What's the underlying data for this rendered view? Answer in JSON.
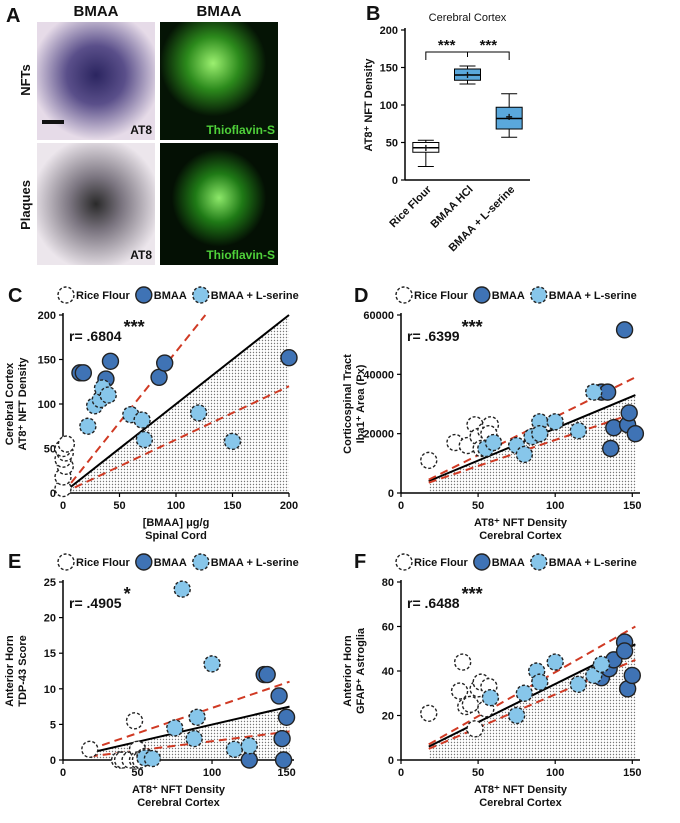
{
  "panel_a": {
    "letter": "A",
    "column_titles": [
      "BMAA",
      "BMAA"
    ],
    "row_labels": [
      "NFTs",
      "Plaques"
    ],
    "image_labels": [
      "AT8",
      "Thioflavin-S",
      "AT8",
      "Thioflavin-S"
    ]
  },
  "chart_data": [
    {
      "type": "box",
      "panel": "B",
      "title": "Cerebral Cortex",
      "y_label": "AT8⁺ NFT Density",
      "categories": [
        "Rice Flour",
        "BMAA HCl",
        "BMAA + L-serine"
      ],
      "boxes": [
        {
          "min": 18,
          "q1": 37,
          "median": 43,
          "q3": 50,
          "max": 53,
          "mean": 43,
          "color": "#ffffff"
        },
        {
          "min": 128,
          "q1": 133,
          "median": 140,
          "q3": 148,
          "max": 152,
          "mean": 140,
          "color": "#5aa8dc"
        },
        {
          "min": 57,
          "q1": 68,
          "median": 82,
          "q3": 97,
          "max": 115,
          "mean": 84,
          "color": "#5aa8dc"
        }
      ],
      "significance": [
        "***",
        "***"
      ],
      "ylim": [
        0,
        200
      ],
      "yticks": [
        0,
        50,
        100,
        150,
        200
      ]
    },
    {
      "type": "scatter",
      "panel": "C",
      "annotation": "r= .6804",
      "stars": "***",
      "y_label": [
        "Cerebral Cortex",
        "AT8⁺ NFT Density"
      ],
      "x_label": [
        "[BMAA] μg/g",
        "Spinal Cord"
      ],
      "xlim": [
        0,
        200
      ],
      "ylim": [
        0,
        200
      ],
      "xticks": [
        0,
        50,
        100,
        150,
        200
      ],
      "yticks": [
        0,
        50,
        100,
        150,
        200
      ],
      "series": [
        {
          "name": "Rice Flour",
          "color": "#ffffff",
          "dashed": true,
          "x": [
            0,
            0,
            2,
            0,
            2,
            0,
            3
          ],
          "values": [
            5,
            18,
            30,
            38,
            45,
            50,
            55
          ]
        },
        {
          "name": "BMAA",
          "color": "#3f73b5",
          "dashed": false,
          "x": [
            15,
            18,
            38,
            42,
            85,
            90,
            200
          ],
          "values": [
            135,
            135,
            128,
            148,
            130,
            146,
            152
          ]
        },
        {
          "name": "BMAA + L-serine",
          "color": "#87c6ea",
          "dashed": true,
          "x": [
            22,
            28,
            33,
            35,
            40,
            60,
            70,
            72,
            120,
            150
          ],
          "values": [
            75,
            98,
            105,
            118,
            110,
            88,
            82,
            60,
            90,
            58
          ]
        }
      ],
      "fit_lines": [
        {
          "color": "#000000",
          "dash": false,
          "x": [
            0,
            200
          ],
          "y": [
            0,
            200
          ]
        },
        {
          "color": "#d03a24",
          "dash": true,
          "x": [
            0,
            126
          ],
          "y": [
            0,
            200
          ]
        },
        {
          "color": "#d03a24",
          "dash": true,
          "x": [
            0,
            200
          ],
          "y": [
            0,
            120
          ]
        }
      ]
    },
    {
      "type": "scatter",
      "panel": "D",
      "annotation": "r= .6399",
      "stars": "***",
      "y_label": [
        "Corticospinal Tract",
        "Iba1⁺ Area (Px)"
      ],
      "x_label": [
        "AT8⁺ NFT Density",
        "Cerebral Cortex"
      ],
      "xlim": [
        0,
        155
      ],
      "ylim": [
        0,
        60000
      ],
      "xticks": [
        0,
        50,
        100,
        150
      ],
      "yticks": [
        0,
        20000,
        40000,
        60000
      ],
      "series": [
        {
          "name": "Rice Flour",
          "color": "#ffffff",
          "dashed": true,
          "x": [
            18,
            35,
            43,
            48,
            50,
            52,
            55,
            58,
            57
          ],
          "values": [
            11000,
            17000,
            16000,
            23000,
            19000,
            15000,
            21000,
            23000,
            20000
          ]
        },
        {
          "name": "BMAA",
          "color": "#3f73b5",
          "dashed": false,
          "x": [
            130,
            134,
            136,
            138,
            145,
            147,
            148,
            152
          ],
          "values": [
            34000,
            34000,
            15000,
            22000,
            55000,
            23000,
            27000,
            20000
          ]
        },
        {
          "name": "BMAA + L-serine",
          "color": "#87c6ea",
          "dashed": true,
          "x": [
            55,
            60,
            75,
            80,
            85,
            90,
            90,
            100,
            115,
            125
          ],
          "values": [
            15000,
            17000,
            16000,
            13000,
            19000,
            24000,
            20000,
            24000,
            21000,
            34000
          ]
        }
      ],
      "fit_lines": [
        {
          "color": "#000000",
          "dash": false,
          "x": [
            18,
            152
          ],
          "y": [
            4000,
            33000
          ]
        },
        {
          "color": "#d03a24",
          "dash": true,
          "x": [
            18,
            152
          ],
          "y": [
            4500,
            39000
          ]
        },
        {
          "color": "#d03a24",
          "dash": true,
          "x": [
            18,
            152
          ],
          "y": [
            3500,
            27000
          ]
        }
      ]
    },
    {
      "type": "scatter",
      "panel": "E",
      "annotation": "r= .4905",
      "stars": "*",
      "y_label": [
        "Anterior Horn",
        "TDP-43 Score"
      ],
      "x_label": [
        "AT8⁺ NFT Density",
        "Cerebral Cortex"
      ],
      "xlim": [
        0,
        155
      ],
      "ylim": [
        0,
        25
      ],
      "xticks": [
        0,
        50,
        100,
        150
      ],
      "yticks": [
        0,
        5,
        10,
        15,
        20,
        25
      ],
      "series": [
        {
          "name": "Rice Flour",
          "color": "#ffffff",
          "dashed": true,
          "x": [
            18,
            38,
            40,
            45,
            48,
            50,
            50,
            52,
            55
          ],
          "values": [
            1.5,
            0,
            0,
            0,
            5.5,
            1.5,
            0,
            0,
            0.5
          ]
        },
        {
          "name": "BMAA",
          "color": "#3f73b5",
          "dashed": false,
          "x": [
            125,
            135,
            137,
            145,
            147,
            148,
            150
          ],
          "values": [
            0,
            12,
            12,
            9,
            3,
            0,
            6
          ]
        },
        {
          "name": "BMAA + L-serine",
          "color": "#87c6ea",
          "dashed": true,
          "x": [
            55,
            60,
            75,
            80,
            88,
            90,
            100,
            115,
            125
          ],
          "values": [
            0.3,
            0.2,
            4.5,
            24,
            3,
            6,
            13.5,
            1.5,
            2
          ]
        }
      ],
      "fit_lines": [
        {
          "color": "#000000",
          "dash": false,
          "x": [
            18,
            152
          ],
          "y": [
            1,
            7.5
          ]
        },
        {
          "color": "#d03a24",
          "dash": true,
          "x": [
            18,
            152
          ],
          "y": [
            1.5,
            11
          ]
        },
        {
          "color": "#d03a24",
          "dash": true,
          "x": [
            18,
            152
          ],
          "y": [
            0.5,
            4
          ]
        }
      ]
    },
    {
      "type": "scatter",
      "panel": "F",
      "annotation": "r= .6488",
      "stars": "***",
      "y_label": [
        "Anterior Horn",
        "GFAP⁺ Astroglia"
      ],
      "x_label": [
        "AT8⁺ NFT Density",
        "Cerebral Cortex"
      ],
      "xlim": [
        0,
        155
      ],
      "ylim": [
        0,
        80
      ],
      "xticks": [
        0,
        50,
        100,
        150
      ],
      "yticks": [
        0,
        20,
        40,
        60,
        80
      ],
      "series": [
        {
          "name": "Rice Flour",
          "color": "#ffffff",
          "dashed": true,
          "x": [
            18,
            38,
            40,
            42,
            45,
            48,
            50,
            52,
            55,
            57
          ],
          "values": [
            21,
            31,
            44,
            24,
            25,
            14,
            32,
            35,
            23,
            33
          ]
        },
        {
          "name": "BMAA",
          "color": "#3f73b5",
          "dashed": false,
          "x": [
            130,
            135,
            138,
            145,
            145,
            147,
            150
          ],
          "values": [
            37,
            41,
            45,
            53,
            49,
            32,
            38
          ]
        },
        {
          "name": "BMAA + L-serine",
          "color": "#87c6ea",
          "dashed": true,
          "x": [
            58,
            75,
            80,
            88,
            90,
            100,
            115,
            125,
            130
          ],
          "values": [
            28,
            20,
            30,
            40,
            35,
            44,
            34,
            38,
            43
          ]
        }
      ],
      "fit_lines": [
        {
          "color": "#000000",
          "dash": false,
          "x": [
            18,
            152
          ],
          "y": [
            6,
            52
          ]
        },
        {
          "color": "#d03a24",
          "dash": true,
          "x": [
            18,
            152
          ],
          "y": [
            7,
            60
          ]
        },
        {
          "color": "#d03a24",
          "dash": true,
          "x": [
            18,
            152
          ],
          "y": [
            5,
            45
          ]
        }
      ]
    }
  ]
}
